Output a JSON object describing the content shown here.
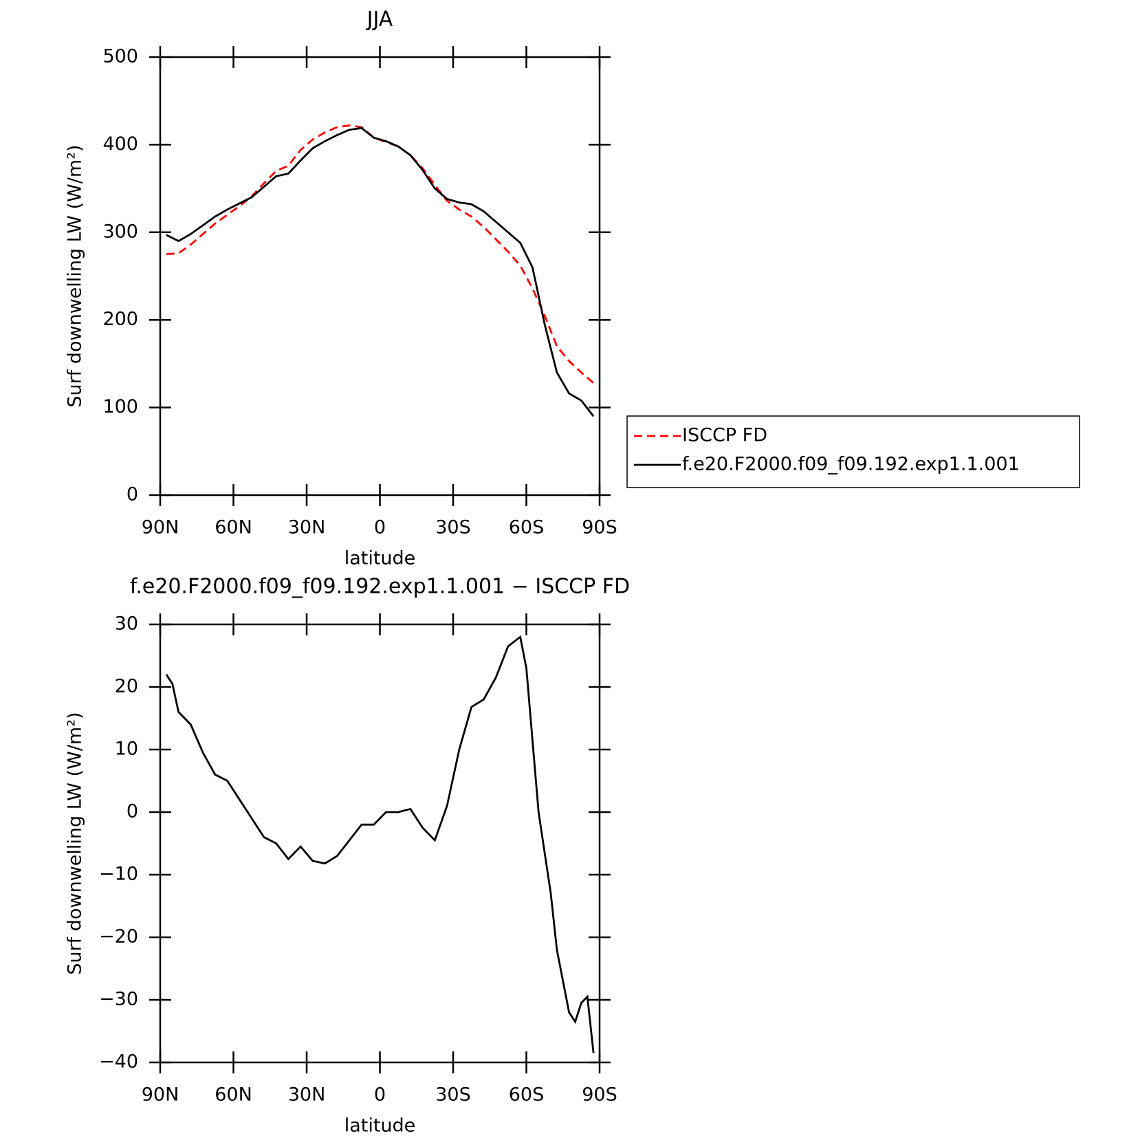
{
  "chart_data": [
    {
      "type": "line",
      "title": "JJA",
      "xlabel": "latitude",
      "ylabel": "Surf downwelling LW (W/m²)",
      "x": [
        87.5,
        82.5,
        77.5,
        72.5,
        67.5,
        62.5,
        57.5,
        52.5,
        47.5,
        42.5,
        37.5,
        32.5,
        27.5,
        22.5,
        17.5,
        12.5,
        7.5,
        2.5,
        -2.5,
        -7.5,
        -12.5,
        -17.5,
        -22.5,
        -27.5,
        -32.5,
        -37.5,
        -42.5,
        -47.5,
        -52.5,
        -57.5,
        -62.5,
        -67.5,
        -72.5,
        -77.5,
        -82.5,
        -87.5
      ],
      "series": [
        {
          "name": "ISCCP FD",
          "color": "#ff0000",
          "style": "dashed",
          "values": [
            275,
            276,
            286,
            298,
            310,
            320,
            330,
            341,
            356,
            370,
            376,
            394,
            406,
            414,
            420,
            422,
            420,
            408,
            403,
            398,
            388,
            373,
            354,
            336,
            326,
            318,
            306,
            292,
            278,
            262,
            236,
            205,
            170,
            153,
            140,
            128
          ]
        },
        {
          "name": "f.e20.F2000.f09_f09.192.exp1.1.001",
          "color": "#000000",
          "style": "solid",
          "values": [
            297,
            290,
            298,
            308,
            318,
            326,
            333,
            340,
            352,
            364,
            367,
            382,
            396,
            404,
            411,
            417,
            419,
            408,
            404,
            398,
            388,
            371,
            350,
            338,
            334,
            332,
            324,
            312,
            300,
            288,
            260,
            195,
            140,
            116,
            108,
            90
          ]
        }
      ],
      "xlim": [
        90,
        -90
      ],
      "xticks": [
        {
          "value": 90,
          "label": "90N"
        },
        {
          "value": 60,
          "label": "60N"
        },
        {
          "value": 30,
          "label": "30N"
        },
        0,
        {
          "value": -30,
          "label": "30S"
        },
        {
          "value": -60,
          "label": "60S"
        },
        {
          "value": -90,
          "label": "90S"
        }
      ],
      "ylim": [
        0,
        500
      ],
      "yticks": [
        0,
        100,
        200,
        300,
        400,
        500
      ],
      "legend": "right"
    },
    {
      "type": "line",
      "title": "f.e20.F2000.f09_f09.192.exp1.1.001 − ISCCP FD",
      "xlabel": "latitude",
      "ylabel": "Surf downwelling LW (W/m²)",
      "x": [
        87.5,
        85,
        82.5,
        77.5,
        72.5,
        67.5,
        62.5,
        57.5,
        52.5,
        47.5,
        42.5,
        37.5,
        32.5,
        27.5,
        22.5,
        17.5,
        12.5,
        7.5,
        2.5,
        -2.5,
        -7.5,
        -12.5,
        -17.5,
        -22.5,
        -27.5,
        -32.5,
        -37.5,
        -42.5,
        -47.5,
        -52.5,
        -57.5,
        -60,
        -65,
        -70,
        -72.5,
        -77.5,
        -80,
        -82.5,
        -85,
        -87.5
      ],
      "series": [
        {
          "name": "f.e20.F2000.f09_f09.192.exp1.1.001 − ISCCP FD",
          "color": "#000000",
          "style": "solid",
          "values": [
            22,
            20.5,
            16,
            14,
            9.5,
            6,
            5,
            2,
            -1,
            -4,
            -5,
            -7.5,
            -5.5,
            -7.8,
            -8.2,
            -7,
            -4.5,
            -2,
            -2,
            0,
            0,
            0.5,
            -2.5,
            -4.5,
            1,
            10,
            16.8,
            18,
            21.5,
            26.5,
            28,
            23,
            0,
            -13,
            -22,
            -32,
            -33.5,
            -30.5,
            -29.5,
            -38.5
          ]
        }
      ],
      "xlim": [
        90,
        -90
      ],
      "xticks": [
        {
          "value": 90,
          "label": "90N"
        },
        {
          "value": 60,
          "label": "60N"
        },
        {
          "value": 30,
          "label": "30N"
        },
        0,
        {
          "value": -30,
          "label": "30S"
        },
        {
          "value": -60,
          "label": "60S"
        },
        {
          "value": -90,
          "label": "90S"
        }
      ],
      "ylim": [
        -40,
        30
      ],
      "yticks": [
        {
          "value": -40,
          "label": "−40"
        },
        {
          "value": -30,
          "label": "−30"
        },
        {
          "value": -20,
          "label": "−20"
        },
        {
          "value": -10,
          "label": "−10"
        },
        0,
        10,
        20,
        30
      ]
    }
  ]
}
